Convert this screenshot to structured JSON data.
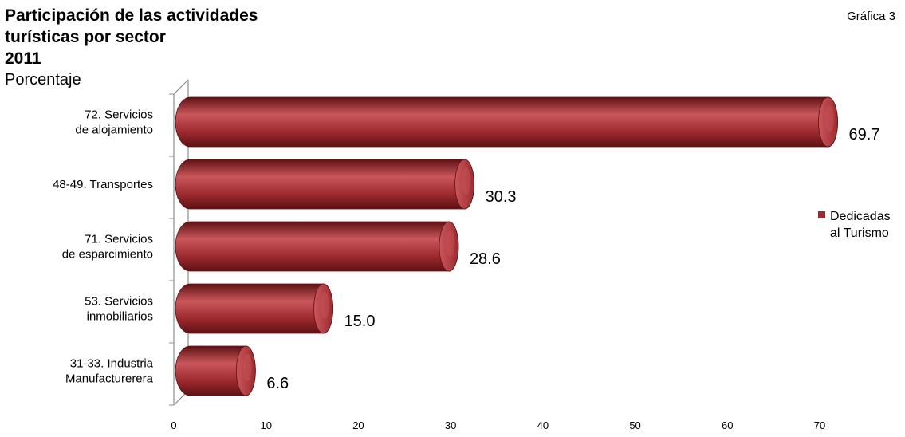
{
  "header": {
    "title_lines": [
      "Participación de las actividades",
      "turísticas por sector",
      "2011"
    ],
    "subtitle": "Porcentaje",
    "chart_number": "Gráfica 3"
  },
  "colors": {
    "bar": "#9c2a2e",
    "bar_highlight": "#c9575b",
    "bar_shadow": "#5e1114",
    "axis": "#8c8c8c"
  },
  "chart_data": {
    "type": "bar",
    "orientation": "horizontal",
    "title": "Participación de las actividades turísticas por sector 2011",
    "ylabel": "Porcentaje",
    "categories": [
      [
        "72. Servicios",
        "de alojamiento"
      ],
      [
        "48-49. Transportes"
      ],
      [
        "71. Servicios",
        "de esparcimiento"
      ],
      [
        "53. Servicios",
        "inmobiliarios"
      ],
      [
        "31-33. Industria",
        "Manufacturerera"
      ]
    ],
    "value_labels": [
      "69.7",
      "30.3",
      "28.6",
      "15.0",
      "6.6"
    ],
    "series": [
      {
        "name": "Dedicadas al Turismo",
        "legend_lines": [
          "Dedicadas",
          "al Turismo"
        ],
        "values": [
          69.7,
          30.3,
          28.6,
          15.0,
          6.6
        ]
      }
    ],
    "xlim": [
      0,
      70
    ],
    "xticks": [
      0,
      10,
      20,
      30,
      40,
      50,
      60,
      70
    ],
    "legend_position": "right",
    "grid": false
  }
}
